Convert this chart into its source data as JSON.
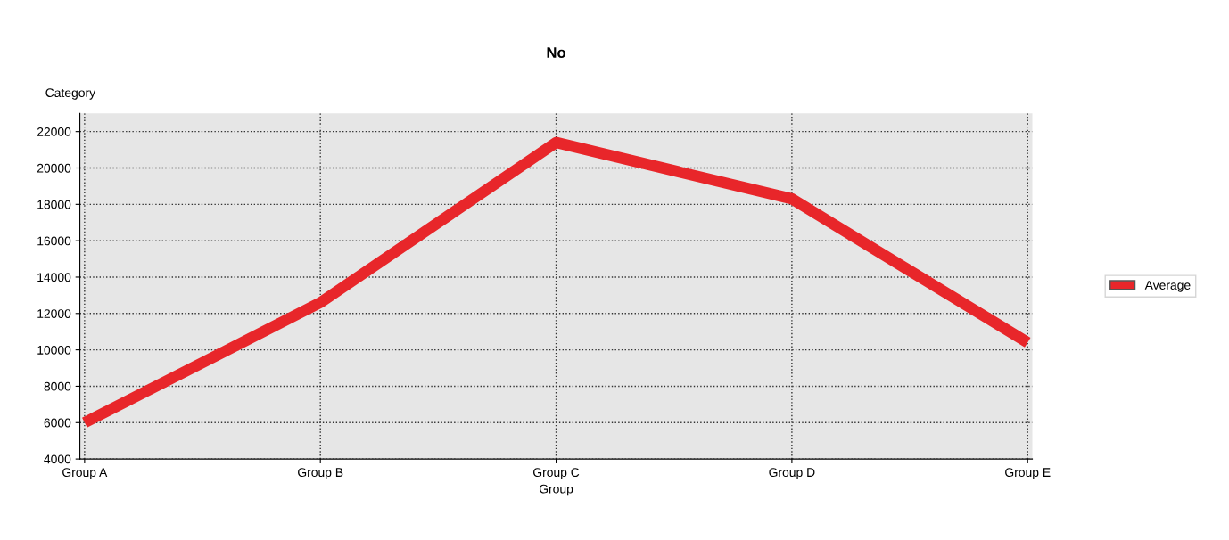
{
  "chart_data": {
    "type": "line",
    "title": "No",
    "xlabel": "Group",
    "ylabel": "Category",
    "categories": [
      "Group A",
      "Group B",
      "Group C",
      "Group D",
      "Group E"
    ],
    "series": [
      {
        "name": "Average",
        "color": "#e8262a",
        "values": [
          6000,
          12600,
          21400,
          18300,
          10400
        ]
      }
    ],
    "ylim": [
      4000,
      23000
    ],
    "yticks": [
      4000,
      6000,
      8000,
      10000,
      12000,
      14000,
      16000,
      18000,
      20000,
      22000
    ],
    "grid": true,
    "legend": "right",
    "line_style": "solid",
    "marker": "none"
  }
}
